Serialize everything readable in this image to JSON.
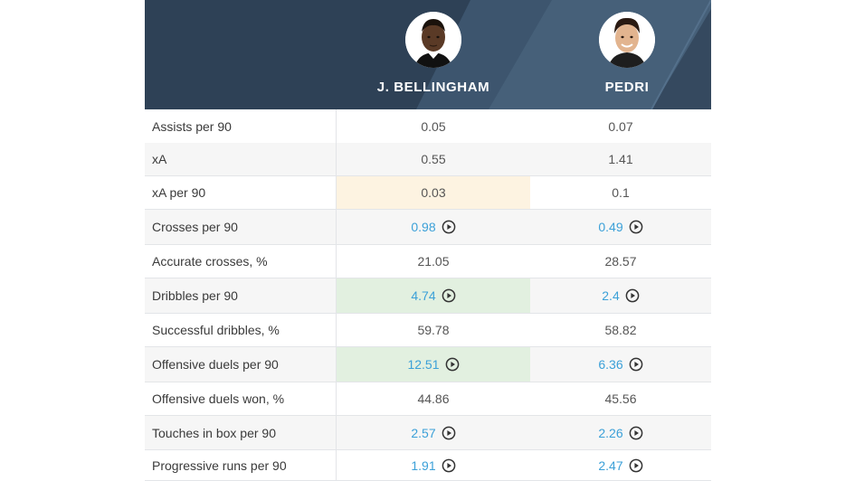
{
  "players": [
    {
      "name": "J. BELLINGHAM",
      "photo_icon": "player-photo-bellingham"
    },
    {
      "name": "PEDRI",
      "photo_icon": "player-photo-pedri"
    }
  ],
  "colors": {
    "header_bg": "#2e4156",
    "header_stripe": "#44607b",
    "link": "#3ba0d8",
    "highlight_green": "#e2f0e0",
    "highlight_yellow": "#fdf3e1"
  },
  "rows": [
    {
      "label": "Assists per 90",
      "values": [
        "0.05",
        "0.07"
      ],
      "video": false
    },
    {
      "label": "xA",
      "values": [
        "0.55",
        "1.41"
      ],
      "video": false
    },
    {
      "label": "xA per 90",
      "values": [
        "0.03",
        "0.1"
      ],
      "video": false
    },
    {
      "label": "Crosses per 90",
      "values": [
        "0.98",
        "0.49"
      ],
      "video": true
    },
    {
      "label": "Accurate crosses, %",
      "values": [
        "21.05",
        "28.57"
      ],
      "video": false
    },
    {
      "label": "Dribbles per 90",
      "values": [
        "4.74",
        "2.4"
      ],
      "video": true
    },
    {
      "label": "Successful dribbles, %",
      "values": [
        "59.78",
        "58.82"
      ],
      "video": false
    },
    {
      "label": "Offensive duels per 90",
      "values": [
        "12.51",
        "6.36"
      ],
      "video": true
    },
    {
      "label": "Offensive duels won, %",
      "values": [
        "44.86",
        "45.56"
      ],
      "video": false
    },
    {
      "label": "Touches in box per 90",
      "values": [
        "2.57",
        "2.26"
      ],
      "video": true
    },
    {
      "label": "Progressive runs per 90",
      "values": [
        "1.91",
        "2.47"
      ],
      "video": true
    }
  ]
}
